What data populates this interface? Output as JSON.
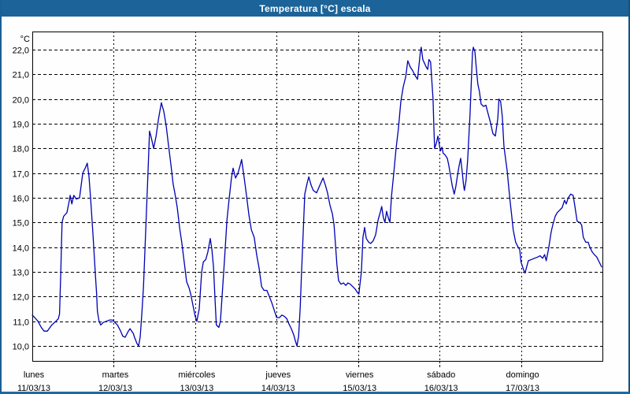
{
  "window": {
    "title": "Temperatura [°C] escala"
  },
  "chart_data": {
    "type": "line",
    "title": "Temperatura [°C] escala",
    "y_axis_unit": "°C",
    "y_ticks": [
      "22,0",
      "21,0",
      "20,0",
      "19,0",
      "18,0",
      "17,0",
      "16,0",
      "15,0",
      "14,0",
      "13,0",
      "12,0",
      "11,0",
      "10,0"
    ],
    "ylim": [
      10,
      22
    ],
    "y_step": 1,
    "grid": "dashed",
    "legend": "none",
    "days": [
      {
        "name": "lunes",
        "date": "11/03/13"
      },
      {
        "name": "martes",
        "date": "12/03/13"
      },
      {
        "name": "miércoles",
        "date": "13/03/13"
      },
      {
        "name": "jueves",
        "date": "14/03/13"
      },
      {
        "name": "viernes",
        "date": "15/03/13"
      },
      {
        "name": "sábado",
        "date": "16/03/13"
      },
      {
        "name": "domingo",
        "date": "17/03/13"
      }
    ],
    "series": [
      {
        "name": "Temperatura",
        "color": "#0000b4",
        "x_unit": "days_from_start",
        "points": [
          [
            0,
            11.25
          ],
          [
            0.03,
            11.15
          ],
          [
            0.07,
            11.0
          ],
          [
            0.11,
            10.75
          ],
          [
            0.145,
            10.6
          ],
          [
            0.185,
            10.6
          ],
          [
            0.24,
            10.85
          ],
          [
            0.29,
            11.0
          ],
          [
            0.32,
            11.1
          ],
          [
            0.335,
            11.3
          ],
          [
            0.35,
            13.0
          ],
          [
            0.365,
            15.0
          ],
          [
            0.385,
            15.25
          ],
          [
            0.425,
            15.4
          ],
          [
            0.455,
            15.9
          ],
          [
            0.465,
            16.1
          ],
          [
            0.485,
            15.75
          ],
          [
            0.51,
            16.1
          ],
          [
            0.54,
            15.95
          ],
          [
            0.58,
            16.0
          ],
          [
            0.62,
            17.0
          ],
          [
            0.65,
            17.2
          ],
          [
            0.675,
            17.4
          ],
          [
            0.695,
            16.9
          ],
          [
            0.715,
            16.0
          ],
          [
            0.745,
            14.5
          ],
          [
            0.775,
            12.85
          ],
          [
            0.79,
            12.1
          ],
          [
            0.8,
            11.4
          ],
          [
            0.82,
            11.0
          ],
          [
            0.84,
            10.85
          ],
          [
            0.87,
            10.95
          ],
          [
            0.91,
            11.0
          ],
          [
            0.95,
            11.05
          ],
          [
            0.985,
            11.05
          ],
          [
            1.015,
            10.95
          ],
          [
            1.045,
            10.85
          ],
          [
            1.085,
            10.6
          ],
          [
            1.11,
            10.4
          ],
          [
            1.14,
            10.35
          ],
          [
            1.18,
            10.6
          ],
          [
            1.2,
            10.7
          ],
          [
            1.24,
            10.5
          ],
          [
            1.255,
            10.35
          ],
          [
            1.285,
            10.1
          ],
          [
            1.305,
            10.0
          ],
          [
            1.325,
            10.35
          ],
          [
            1.345,
            11.3
          ],
          [
            1.365,
            12.4
          ],
          [
            1.38,
            13.6
          ],
          [
            1.4,
            15.3
          ],
          [
            1.42,
            17.0
          ],
          [
            1.44,
            18.7
          ],
          [
            1.46,
            18.45
          ],
          [
            1.49,
            18.0
          ],
          [
            1.52,
            18.5
          ],
          [
            1.55,
            19.2
          ],
          [
            1.585,
            19.85
          ],
          [
            1.615,
            19.5
          ],
          [
            1.645,
            18.9
          ],
          [
            1.67,
            18.2
          ],
          [
            1.7,
            17.4
          ],
          [
            1.73,
            16.55
          ],
          [
            1.75,
            16.2
          ],
          [
            1.78,
            15.6
          ],
          [
            1.81,
            14.75
          ],
          [
            1.835,
            14.2
          ],
          [
            1.865,
            13.4
          ],
          [
            1.895,
            12.6
          ],
          [
            1.925,
            12.35
          ],
          [
            1.945,
            12.1
          ],
          [
            1.975,
            11.6
          ],
          [
            2.0,
            11.2
          ],
          [
            2.02,
            11.0
          ],
          [
            2.05,
            11.5
          ],
          [
            2.08,
            13.0
          ],
          [
            2.1,
            13.4
          ],
          [
            2.13,
            13.5
          ],
          [
            2.155,
            13.8
          ],
          [
            2.185,
            14.35
          ],
          [
            2.205,
            13.9
          ],
          [
            2.225,
            13.2
          ],
          [
            2.245,
            11.8
          ],
          [
            2.26,
            10.85
          ],
          [
            2.29,
            10.75
          ],
          [
            2.31,
            11.0
          ],
          [
            2.33,
            12.0
          ],
          [
            2.36,
            13.5
          ],
          [
            2.39,
            15.1
          ],
          [
            2.415,
            15.9
          ],
          [
            2.445,
            16.8
          ],
          [
            2.465,
            17.2
          ],
          [
            2.495,
            16.8
          ],
          [
            2.525,
            17.0
          ],
          [
            2.555,
            17.35
          ],
          [
            2.57,
            17.55
          ],
          [
            2.6,
            16.85
          ],
          [
            2.63,
            16.1
          ],
          [
            2.66,
            15.3
          ],
          [
            2.69,
            14.7
          ],
          [
            2.725,
            14.4
          ],
          [
            2.755,
            13.7
          ],
          [
            2.785,
            13.15
          ],
          [
            2.815,
            12.4
          ],
          [
            2.845,
            12.25
          ],
          [
            2.88,
            12.25
          ],
          [
            2.91,
            12.0
          ],
          [
            2.94,
            11.75
          ],
          [
            2.97,
            11.45
          ],
          [
            3.0,
            11.15
          ],
          [
            3.035,
            11.15
          ],
          [
            3.065,
            11.25
          ],
          [
            3.095,
            11.2
          ],
          [
            3.125,
            11.1
          ],
          [
            3.15,
            10.9
          ],
          [
            3.18,
            10.7
          ],
          [
            3.21,
            10.45
          ],
          [
            3.23,
            10.2
          ],
          [
            3.25,
            10.0
          ],
          [
            3.27,
            10.4
          ],
          [
            3.29,
            11.6
          ],
          [
            3.305,
            12.9
          ],
          [
            3.325,
            14.5
          ],
          [
            3.345,
            16.15
          ],
          [
            3.375,
            16.6
          ],
          [
            3.395,
            16.85
          ],
          [
            3.425,
            16.5
          ],
          [
            3.45,
            16.3
          ],
          [
            3.49,
            16.2
          ],
          [
            3.53,
            16.5
          ],
          [
            3.57,
            16.8
          ],
          [
            3.6,
            16.5
          ],
          [
            3.625,
            16.2
          ],
          [
            3.655,
            15.7
          ],
          [
            3.685,
            15.35
          ],
          [
            3.705,
            14.9
          ],
          [
            3.72,
            14.2
          ],
          [
            3.74,
            13.3
          ],
          [
            3.76,
            12.65
          ],
          [
            3.79,
            12.5
          ],
          [
            3.82,
            12.55
          ],
          [
            3.85,
            12.45
          ],
          [
            3.875,
            12.55
          ],
          [
            3.905,
            12.5
          ],
          [
            3.935,
            12.4
          ],
          [
            3.965,
            12.3
          ],
          [
            3.995,
            12.15
          ],
          [
            4.01,
            12.1
          ],
          [
            4.04,
            13.0
          ],
          [
            4.06,
            14.4
          ],
          [
            4.08,
            14.8
          ],
          [
            4.1,
            14.35
          ],
          [
            4.13,
            14.2
          ],
          [
            4.155,
            14.15
          ],
          [
            4.185,
            14.25
          ],
          [
            4.215,
            14.5
          ],
          [
            4.245,
            15.1
          ],
          [
            4.275,
            15.45
          ],
          [
            4.29,
            15.65
          ],
          [
            4.31,
            15.2
          ],
          [
            4.33,
            15.0
          ],
          [
            4.35,
            15.45
          ],
          [
            4.37,
            15.2
          ],
          [
            4.39,
            15.0
          ],
          [
            4.41,
            16.05
          ],
          [
            4.44,
            17.05
          ],
          [
            4.465,
            17.95
          ],
          [
            4.495,
            18.8
          ],
          [
            4.525,
            19.9
          ],
          [
            4.555,
            20.5
          ],
          [
            4.585,
            20.9
          ],
          [
            4.61,
            21.55
          ],
          [
            4.64,
            21.3
          ],
          [
            4.67,
            21.15
          ],
          [
            4.7,
            20.95
          ],
          [
            4.73,
            20.8
          ],
          [
            4.745,
            21.3
          ],
          [
            4.765,
            21.9
          ],
          [
            4.775,
            22.1
          ],
          [
            4.795,
            21.6
          ],
          [
            4.815,
            21.45
          ],
          [
            4.835,
            21.3
          ],
          [
            4.855,
            21.2
          ],
          [
            4.87,
            21.6
          ],
          [
            4.89,
            21.5
          ],
          [
            4.9,
            21.0
          ],
          [
            4.92,
            20.0
          ],
          [
            4.93,
            18.9
          ],
          [
            4.94,
            18.0
          ],
          [
            4.96,
            18.2
          ],
          [
            4.98,
            18.5
          ],
          [
            4.99,
            18.3
          ],
          [
            5.01,
            17.9
          ],
          [
            5.03,
            18.05
          ],
          [
            5.045,
            17.8
          ],
          [
            5.065,
            17.75
          ],
          [
            5.095,
            17.6
          ],
          [
            5.115,
            17.3
          ],
          [
            5.135,
            16.9
          ],
          [
            5.155,
            16.5
          ],
          [
            5.18,
            16.15
          ],
          [
            5.2,
            16.45
          ],
          [
            5.22,
            16.9
          ],
          [
            5.24,
            17.3
          ],
          [
            5.26,
            17.6
          ],
          [
            5.28,
            17.0
          ],
          [
            5.295,
            16.5
          ],
          [
            5.305,
            16.3
          ],
          [
            5.325,
            16.7
          ],
          [
            5.345,
            17.5
          ],
          [
            5.365,
            18.8
          ],
          [
            5.375,
            19.4
          ],
          [
            5.385,
            20.3
          ],
          [
            5.395,
            21.1
          ],
          [
            5.405,
            21.9
          ],
          [
            5.415,
            22.1
          ],
          [
            5.435,
            21.9
          ],
          [
            5.45,
            21.3
          ],
          [
            5.47,
            20.6
          ],
          [
            5.49,
            20.3
          ],
          [
            5.51,
            19.8
          ],
          [
            5.54,
            19.7
          ],
          [
            5.57,
            19.75
          ],
          [
            5.585,
            19.55
          ],
          [
            5.605,
            19.3
          ],
          [
            5.625,
            19.05
          ],
          [
            5.655,
            18.6
          ],
          [
            5.685,
            18.5
          ],
          [
            5.715,
            19.2
          ],
          [
            5.73,
            20.0
          ],
          [
            5.75,
            19.9
          ],
          [
            5.77,
            19.3
          ],
          [
            5.79,
            18.1
          ],
          [
            5.81,
            17.6
          ],
          [
            5.83,
            17.1
          ],
          [
            5.85,
            16.4
          ],
          [
            5.865,
            15.9
          ],
          [
            5.885,
            15.3
          ],
          [
            5.905,
            14.7
          ],
          [
            5.935,
            14.2
          ],
          [
            5.965,
            14.0
          ],
          [
            5.985,
            13.9
          ],
          [
            6.0,
            13.4
          ],
          [
            6.03,
            13.1
          ],
          [
            6.05,
            12.95
          ],
          [
            6.07,
            13.2
          ],
          [
            6.09,
            13.45
          ],
          [
            6.13,
            13.5
          ],
          [
            6.165,
            13.55
          ],
          [
            6.205,
            13.6
          ],
          [
            6.235,
            13.65
          ],
          [
            6.265,
            13.55
          ],
          [
            6.29,
            13.7
          ],
          [
            6.31,
            13.45
          ],
          [
            6.34,
            13.95
          ],
          [
            6.37,
            14.6
          ],
          [
            6.39,
            14.9
          ],
          [
            6.42,
            15.25
          ],
          [
            6.445,
            15.4
          ],
          [
            6.475,
            15.5
          ],
          [
            6.505,
            15.6
          ],
          [
            6.535,
            15.9
          ],
          [
            6.555,
            15.75
          ],
          [
            6.58,
            16.0
          ],
          [
            6.61,
            16.15
          ],
          [
            6.64,
            16.1
          ],
          [
            6.66,
            15.7
          ],
          [
            6.69,
            15.05
          ],
          [
            6.72,
            15.0
          ],
          [
            6.745,
            14.9
          ],
          [
            6.765,
            14.4
          ],
          [
            6.795,
            14.2
          ],
          [
            6.825,
            14.2
          ],
          [
            6.845,
            14.0
          ],
          [
            6.875,
            13.8
          ],
          [
            6.9,
            13.7
          ],
          [
            6.93,
            13.6
          ],
          [
            6.96,
            13.4
          ],
          [
            6.99,
            13.2
          ]
        ]
      }
    ]
  }
}
